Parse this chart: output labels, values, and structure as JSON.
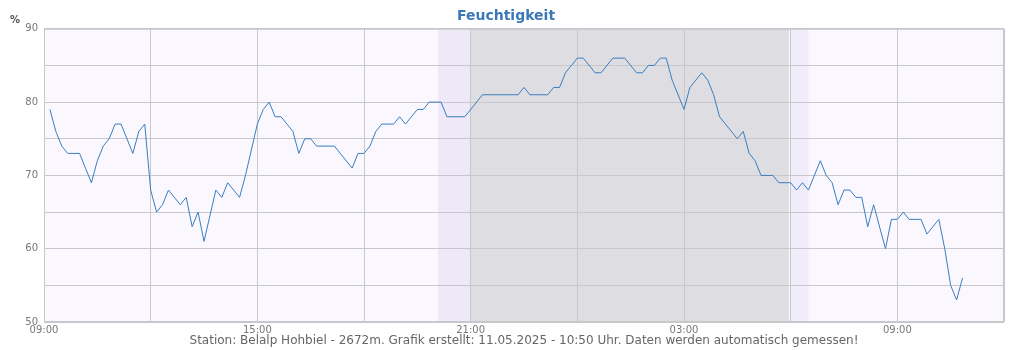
{
  "chart_data": {
    "type": "line",
    "title": "Feuchtigkeit",
    "ylabel": "%",
    "x": [
      "2025-05-10T09:10",
      "2025-05-10T09:20",
      "2025-05-10T09:30",
      "2025-05-10T09:40",
      "2025-05-10T10:00",
      "2025-05-10T10:10",
      "2025-05-10T10:20",
      "2025-05-10T10:30",
      "2025-05-10T10:40",
      "2025-05-10T10:50",
      "2025-05-10T11:00",
      "2025-05-10T11:10",
      "2025-05-10T11:30",
      "2025-05-10T11:40",
      "2025-05-10T11:50",
      "2025-05-10T12:00",
      "2025-05-10T12:10",
      "2025-05-10T12:20",
      "2025-05-10T12:30",
      "2025-05-10T12:50",
      "2025-05-10T13:00",
      "2025-05-10T13:10",
      "2025-05-10T13:20",
      "2025-05-10T13:30",
      "2025-05-10T13:50",
      "2025-05-10T14:00",
      "2025-05-10T14:10",
      "2025-05-10T14:30",
      "2025-05-10T14:40",
      "2025-05-10T15:00",
      "2025-05-10T15:10",
      "2025-05-10T15:20",
      "2025-05-10T15:30",
      "2025-05-10T15:40",
      "2025-05-10T16:00",
      "2025-05-10T16:10",
      "2025-05-10T16:20",
      "2025-05-10T16:30",
      "2025-05-10T16:40",
      "2025-05-10T17:10",
      "2025-05-10T17:40",
      "2025-05-10T17:50",
      "2025-05-10T18:00",
      "2025-05-10T18:10",
      "2025-05-10T18:20",
      "2025-05-10T18:30",
      "2025-05-10T18:50",
      "2025-05-10T19:00",
      "2025-05-10T19:10",
      "2025-05-10T19:30",
      "2025-05-10T19:40",
      "2025-05-10T19:50",
      "2025-05-10T20:10",
      "2025-05-10T20:20",
      "2025-05-10T20:50",
      "2025-05-10T21:20",
      "2025-05-10T22:20",
      "2025-05-10T22:30",
      "2025-05-10T22:40",
      "2025-05-10T23:10",
      "2025-05-10T23:20",
      "2025-05-10T23:30",
      "2025-05-10T23:40",
      "2025-05-11T00:00",
      "2025-05-11T00:10",
      "2025-05-11T00:30",
      "2025-05-11T00:40",
      "2025-05-11T01:00",
      "2025-05-11T01:20",
      "2025-05-11T01:40",
      "2025-05-11T01:50",
      "2025-05-11T02:00",
      "2025-05-11T02:10",
      "2025-05-11T02:20",
      "2025-05-11T02:30",
      "2025-05-11T02:40",
      "2025-05-11T03:00",
      "2025-05-11T03:10",
      "2025-05-11T03:20",
      "2025-05-11T03:30",
      "2025-05-11T03:40",
      "2025-05-11T03:50",
      "2025-05-11T04:00",
      "2025-05-11T04:10",
      "2025-05-11T04:20",
      "2025-05-11T04:30",
      "2025-05-11T04:40",
      "2025-05-11T04:50",
      "2025-05-11T05:00",
      "2025-05-11T05:10",
      "2025-05-11T05:30",
      "2025-05-11T05:40",
      "2025-05-11T06:00",
      "2025-05-11T06:10",
      "2025-05-11T06:20",
      "2025-05-11T06:30",
      "2025-05-11T06:50",
      "2025-05-11T07:00",
      "2025-05-11T07:10",
      "2025-05-11T07:20",
      "2025-05-11T07:30",
      "2025-05-11T07:40",
      "2025-05-11T07:50",
      "2025-05-11T08:00",
      "2025-05-11T08:10",
      "2025-05-11T08:20",
      "2025-05-11T08:40",
      "2025-05-11T08:50",
      "2025-05-11T09:00",
      "2025-05-11T09:10",
      "2025-05-11T09:20",
      "2025-05-11T09:40",
      "2025-05-11T09:50",
      "2025-05-11T10:00",
      "2025-05-11T10:10",
      "2025-05-11T10:20",
      "2025-05-11T10:30",
      "2025-05-11T10:40",
      "2025-05-11T10:50"
    ],
    "series": [
      {
        "color": "#3a7dbf",
        "values": [
          79,
          76,
          74,
          73,
          73,
          71,
          69,
          72,
          74,
          75,
          77,
          77,
          73,
          76,
          77,
          68,
          65,
          66,
          68,
          66,
          67,
          63,
          65,
          61,
          68,
          67,
          69,
          67,
          70,
          77,
          79,
          80,
          78,
          78,
          76,
          73,
          75,
          75,
          74,
          74,
          71,
          73,
          73,
          74,
          76,
          77,
          77,
          78,
          77,
          79,
          79,
          80,
          80,
          78,
          78,
          81,
          81,
          82,
          81,
          81,
          82,
          82,
          84,
          86,
          86,
          84,
          84,
          86,
          86,
          84,
          84,
          85,
          85,
          86,
          86,
          83,
          79,
          82,
          83,
          84,
          83,
          81,
          78,
          77,
          76,
          75,
          76,
          73,
          72,
          70,
          70,
          69,
          69,
          68,
          69,
          68,
          72,
          70,
          69,
          66,
          68,
          68,
          67,
          67,
          63,
          66,
          60,
          64,
          64,
          65,
          64,
          64,
          62,
          63,
          64,
          60,
          55,
          53,
          56
        ]
      }
    ],
    "xlim": [
      "2025-05-10T09:00",
      "2025-05-11T12:00"
    ],
    "xticks": [
      {
        "value": "2025-05-10T09:00",
        "label": "09:00"
      },
      {
        "value": "2025-05-10T12:00",
        "label": null
      },
      {
        "value": "2025-05-10T15:00",
        "label": "15:00"
      },
      {
        "value": "2025-05-10T18:00",
        "label": null
      },
      {
        "value": "2025-05-10T21:00",
        "label": "21:00"
      },
      {
        "value": "2025-05-11T00:00",
        "label": null
      },
      {
        "value": "2025-05-11T03:00",
        "label": "03:00"
      },
      {
        "value": "2025-05-11T06:00",
        "label": null
      },
      {
        "value": "2025-05-11T09:00",
        "label": "09:00"
      },
      {
        "value": "2025-05-11T12:00",
        "label": null
      }
    ],
    "ylim": [
      50,
      90
    ],
    "yticks": [
      50,
      {
        "value": 55,
        "label": null
      },
      60,
      {
        "value": 65,
        "label": null
      },
      70,
      {
        "value": 75,
        "label": null
      },
      80,
      {
        "value": 85,
        "label": null
      },
      90
    ],
    "bands": [
      {
        "axis": "x",
        "from": "2025-05-10T20:05",
        "to": "2025-05-10T21:00",
        "color": "#eee8f8"
      },
      {
        "axis": "x",
        "from": "2025-05-10T21:00",
        "to": "2025-05-11T05:57",
        "color": "#dedee2"
      },
      {
        "axis": "x",
        "from": "2025-05-11T06:00",
        "to": "2025-05-11T06:30",
        "color": "#f1ecfa"
      }
    ],
    "grid": true,
    "legend": false,
    "marker": "none",
    "line_style": "solid",
    "annotations": [
      "Station: Belalp Hohbiel - 2672m. Grafik erstellt: 11.05.2025 - 10:50 Uhr. Daten werden automatisch gemessen!"
    ]
  }
}
